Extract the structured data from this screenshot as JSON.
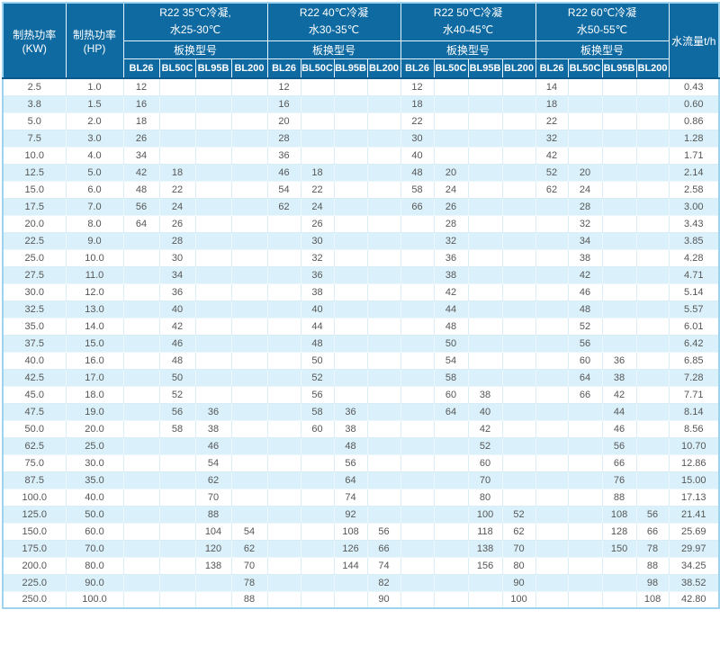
{
  "colors": {
    "header_bg": "#0F6AA2",
    "header_edge": "#0A5A8E",
    "alt_row_bg": "#DAF1FB",
    "grid_line": "#D9EDF7",
    "outer_border": "#9ED3EE",
    "body_text": "#565656"
  },
  "chart_data": {
    "type": "table",
    "title": "",
    "header": {
      "power_kw": "制热功率(KW)",
      "power_hp": "制热功率(HP)",
      "flow": "水流量t/h",
      "model_label": "板换型号",
      "models": [
        "BL26",
        "BL50C",
        "BL95B",
        "BL200"
      ],
      "temp_groups": [
        {
          "line1": "R22 35℃冷凝,",
          "line2": "水25-30℃"
        },
        {
          "line1": "R22 40℃冷凝",
          "line2": "水30-35℃"
        },
        {
          "line1": "R22 50℃冷凝",
          "line2": "水40-45℃"
        },
        {
          "line1": "R22 60℃冷凝",
          "line2": "水50-55℃"
        }
      ]
    },
    "columns": [
      "制热功率(KW)",
      "制热功率(HP)",
      "35℃-BL26",
      "35℃-BL50C",
      "35℃-BL95B",
      "35℃-BL200",
      "40℃-BL26",
      "40℃-BL50C",
      "40℃-BL95B",
      "40℃-BL200",
      "50℃-BL26",
      "50℃-BL50C",
      "50℃-BL95B",
      "50℃-BL200",
      "60℃-BL26",
      "60℃-BL50C",
      "60℃-BL95B",
      "60℃-BL200",
      "水流量t/h"
    ],
    "rows": [
      [
        "2.5",
        "1.0",
        "12",
        "",
        "",
        "",
        "12",
        "",
        "",
        "",
        "12",
        "",
        "",
        "",
        "14",
        "",
        "",
        "",
        "0.43"
      ],
      [
        "3.8",
        "1.5",
        "16",
        "",
        "",
        "",
        "16",
        "",
        "",
        "",
        "18",
        "",
        "",
        "",
        "18",
        "",
        "",
        "",
        "0.60"
      ],
      [
        "5.0",
        "2.0",
        "18",
        "",
        "",
        "",
        "20",
        "",
        "",
        "",
        "22",
        "",
        "",
        "",
        "22",
        "",
        "",
        "",
        "0.86"
      ],
      [
        "7.5",
        "3.0",
        "26",
        "",
        "",
        "",
        "28",
        "",
        "",
        "",
        "30",
        "",
        "",
        "",
        "32",
        "",
        "",
        "",
        "1.28"
      ],
      [
        "10.0",
        "4.0",
        "34",
        "",
        "",
        "",
        "36",
        "",
        "",
        "",
        "40",
        "",
        "",
        "",
        "42",
        "",
        "",
        "",
        "1.71"
      ],
      [
        "12.5",
        "5.0",
        "42",
        "18",
        "",
        "",
        "46",
        "18",
        "",
        "",
        "48",
        "20",
        "",
        "",
        "52",
        "20",
        "",
        "",
        "2.14"
      ],
      [
        "15.0",
        "6.0",
        "48",
        "22",
        "",
        "",
        "54",
        "22",
        "",
        "",
        "58",
        "24",
        "",
        "",
        "62",
        "24",
        "",
        "",
        "2.58"
      ],
      [
        "17.5",
        "7.0",
        "56",
        "24",
        "",
        "",
        "62",
        "24",
        "",
        "",
        "66",
        "26",
        "",
        "",
        "",
        "28",
        "",
        "",
        "3.00"
      ],
      [
        "20.0",
        "8.0",
        "64",
        "26",
        "",
        "",
        "",
        "26",
        "",
        "",
        "",
        "28",
        "",
        "",
        "",
        "32",
        "",
        "",
        "3.43"
      ],
      [
        "22.5",
        "9.0",
        "",
        "28",
        "",
        "",
        "",
        "30",
        "",
        "",
        "",
        "32",
        "",
        "",
        "",
        "34",
        "",
        "",
        "3.85"
      ],
      [
        "25.0",
        "10.0",
        "",
        "30",
        "",
        "",
        "",
        "32",
        "",
        "",
        "",
        "36",
        "",
        "",
        "",
        "38",
        "",
        "",
        "4.28"
      ],
      [
        "27.5",
        "11.0",
        "",
        "34",
        "",
        "",
        "",
        "36",
        "",
        "",
        "",
        "38",
        "",
        "",
        "",
        "42",
        "",
        "",
        "4.71"
      ],
      [
        "30.0",
        "12.0",
        "",
        "36",
        "",
        "",
        "",
        "38",
        "",
        "",
        "",
        "42",
        "",
        "",
        "",
        "46",
        "",
        "",
        "5.14"
      ],
      [
        "32.5",
        "13.0",
        "",
        "40",
        "",
        "",
        "",
        "40",
        "",
        "",
        "",
        "44",
        "",
        "",
        "",
        "48",
        "",
        "",
        "5.57"
      ],
      [
        "35.0",
        "14.0",
        "",
        "42",
        "",
        "",
        "",
        "44",
        "",
        "",
        "",
        "48",
        "",
        "",
        "",
        "52",
        "",
        "",
        "6.01"
      ],
      [
        "37.5",
        "15.0",
        "",
        "46",
        "",
        "",
        "",
        "48",
        "",
        "",
        "",
        "50",
        "",
        "",
        "",
        "56",
        "",
        "",
        "6.42"
      ],
      [
        "40.0",
        "16.0",
        "",
        "48",
        "",
        "",
        "",
        "50",
        "",
        "",
        "",
        "54",
        "",
        "",
        "",
        "60",
        "36",
        "",
        "6.85"
      ],
      [
        "42.5",
        "17.0",
        "",
        "50",
        "",
        "",
        "",
        "52",
        "",
        "",
        "",
        "58",
        "",
        "",
        "",
        "64",
        "38",
        "",
        "7.28"
      ],
      [
        "45.0",
        "18.0",
        "",
        "52",
        "",
        "",
        "",
        "56",
        "",
        "",
        "",
        "60",
        "38",
        "",
        "",
        "66",
        "42",
        "",
        "7.71"
      ],
      [
        "47.5",
        "19.0",
        "",
        "56",
        "36",
        "",
        "",
        "58",
        "36",
        "",
        "",
        "64",
        "40",
        "",
        "",
        "",
        "44",
        "",
        "8.14"
      ],
      [
        "50.0",
        "20.0",
        "",
        "58",
        "38",
        "",
        "",
        "60",
        "38",
        "",
        "",
        "",
        "42",
        "",
        "",
        "",
        "46",
        "",
        "8.56"
      ],
      [
        "62.5",
        "25.0",
        "",
        "",
        "46",
        "",
        "",
        "",
        "48",
        "",
        "",
        "",
        "52",
        "",
        "",
        "",
        "56",
        "",
        "10.70"
      ],
      [
        "75.0",
        "30.0",
        "",
        "",
        "54",
        "",
        "",
        "",
        "56",
        "",
        "",
        "",
        "60",
        "",
        "",
        "",
        "66",
        "",
        "12.86"
      ],
      [
        "87.5",
        "35.0",
        "",
        "",
        "62",
        "",
        "",
        "",
        "64",
        "",
        "",
        "",
        "70",
        "",
        "",
        "",
        "76",
        "",
        "15.00"
      ],
      [
        "100.0",
        "40.0",
        "",
        "",
        "70",
        "",
        "",
        "",
        "74",
        "",
        "",
        "",
        "80",
        "",
        "",
        "",
        "88",
        "",
        "17.13"
      ],
      [
        "125.0",
        "50.0",
        "",
        "",
        "88",
        "",
        "",
        "",
        "92",
        "",
        "",
        "",
        "100",
        "52",
        "",
        "",
        "108",
        "56",
        "21.41"
      ],
      [
        "150.0",
        "60.0",
        "",
        "",
        "104",
        "54",
        "",
        "",
        "108",
        "56",
        "",
        "",
        "118",
        "62",
        "",
        "",
        "128",
        "66",
        "25.69"
      ],
      [
        "175.0",
        "70.0",
        "",
        "",
        "120",
        "62",
        "",
        "",
        "126",
        "66",
        "",
        "",
        "138",
        "70",
        "",
        "",
        "150",
        "78",
        "29.97"
      ],
      [
        "200.0",
        "80.0",
        "",
        "",
        "138",
        "70",
        "",
        "",
        "144",
        "74",
        "",
        "",
        "156",
        "80",
        "",
        "",
        "",
        "88",
        "34.25"
      ],
      [
        "225.0",
        "90.0",
        "",
        "",
        "",
        "78",
        "",
        "",
        "",
        "82",
        "",
        "",
        "",
        "90",
        "",
        "",
        "",
        "98",
        "38.52"
      ],
      [
        "250.0",
        "100.0",
        "",
        "",
        "",
        "88",
        "",
        "",
        "",
        "90",
        "",
        "",
        "",
        "100",
        "",
        "",
        "",
        "108",
        "42.80"
      ]
    ]
  }
}
